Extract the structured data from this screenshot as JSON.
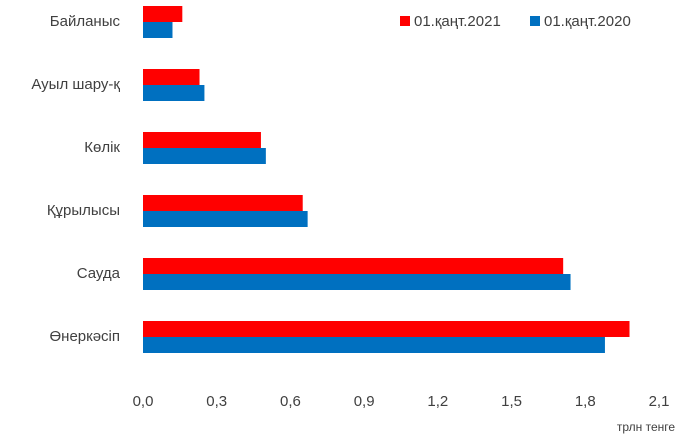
{
  "chart_data": {
    "type": "hbar",
    "categories": [
      "Байланыс",
      "Ауыл шару-қ",
      "Көлік",
      "Құрылысы",
      "Сауда",
      "Өнеркәсіп"
    ],
    "series": [
      {
        "name": "01.қаңт.2021",
        "color": "#ff0000",
        "values": [
          0.16,
          0.23,
          0.48,
          0.65,
          1.71,
          1.98
        ]
      },
      {
        "name": "01.қаңт.2020",
        "color": "#0070c0",
        "values": [
          0.12,
          0.25,
          0.5,
          0.67,
          1.74,
          1.88
        ]
      }
    ],
    "xlim": [
      0,
      2.1
    ],
    "xticks": [
      {
        "value": 0,
        "label": "0,0"
      },
      {
        "value": 0.3,
        "label": "0,3"
      },
      {
        "value": 0.6,
        "label": "0,6"
      },
      {
        "value": 0.9,
        "label": "0,9"
      },
      {
        "value": 1.2,
        "label": "1,2"
      },
      {
        "value": 1.5,
        "label": "1,5"
      },
      {
        "value": 1.8,
        "label": "1,8"
      },
      {
        "value": 2.1,
        "label": "2,1"
      }
    ],
    "xlabel": "трлн тенге",
    "grid": false,
    "legend": "top-right"
  }
}
